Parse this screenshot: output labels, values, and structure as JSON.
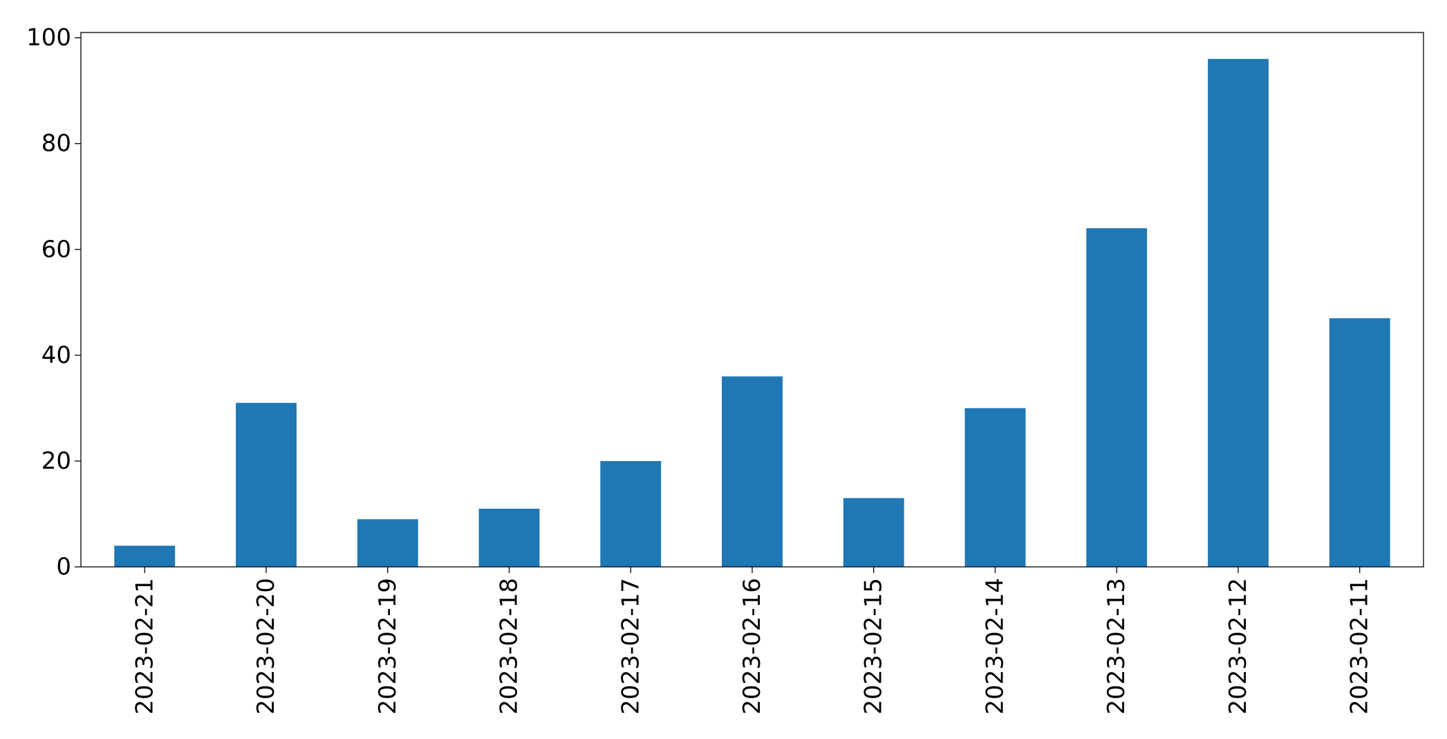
{
  "chart_data": {
    "type": "bar",
    "categories": [
      "2023-02-21",
      "2023-02-20",
      "2023-02-19",
      "2023-02-18",
      "2023-02-17",
      "2023-02-16",
      "2023-02-15",
      "2023-02-14",
      "2023-02-13",
      "2023-02-12",
      "2023-02-11"
    ],
    "values": [
      4,
      31,
      9,
      11,
      20,
      36,
      13,
      30,
      64,
      96,
      47
    ],
    "ylim": [
      0,
      101
    ],
    "yticks": [
      0,
      20,
      40,
      60,
      80,
      100
    ],
    "grid": false,
    "bar_color": "#1f77b4"
  }
}
